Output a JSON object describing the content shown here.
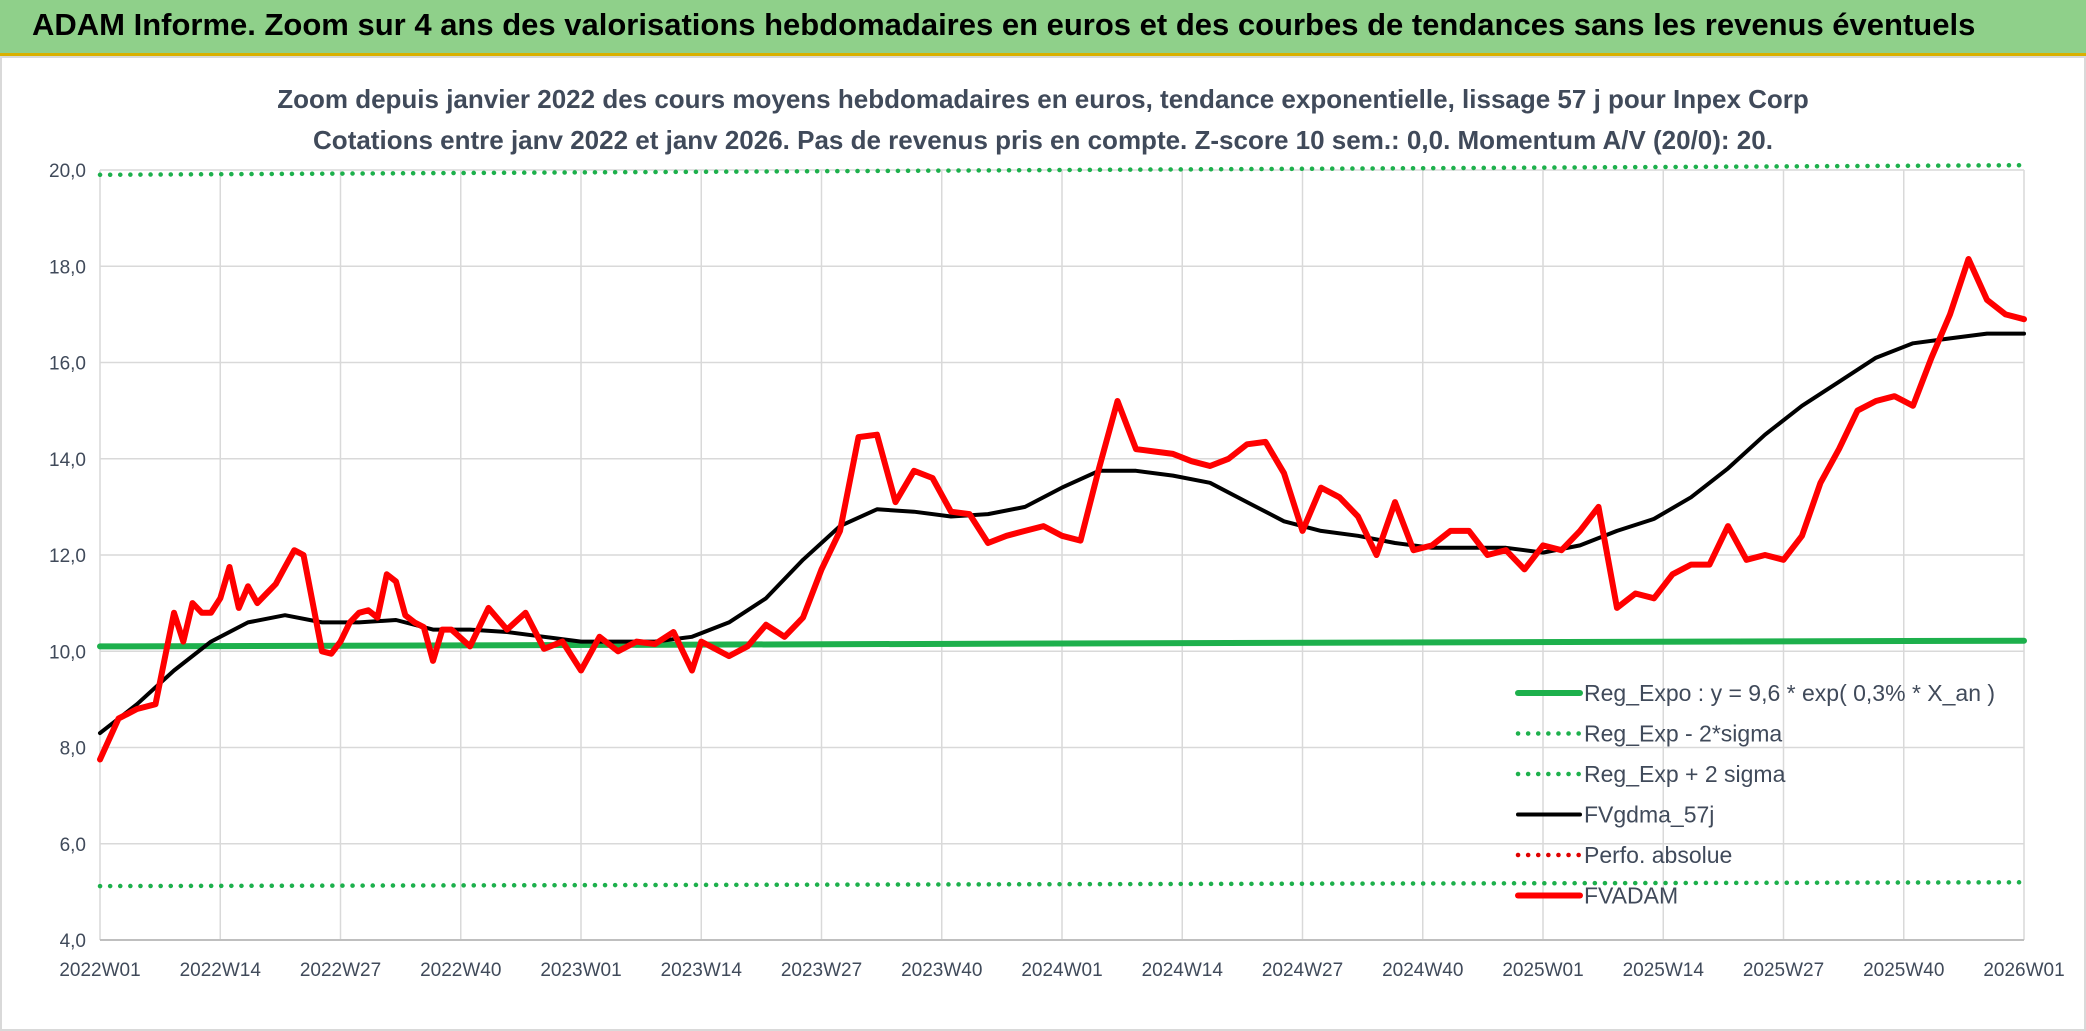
{
  "banner": {
    "title": "ADAM Informe. Zoom sur 4 ans des valorisations hebdomadaires en euros et des courbes de tendances sans les revenus éventuels"
  },
  "chart_data": {
    "type": "line",
    "title": "Zoom depuis janvier 2022 des cours moyens hebdomadaires en euros, tendance exponentielle, lissage 57 j pour Inpex Corp",
    "subtitle": "Cotations entre janv 2022 et janv 2026. Pas de revenus pris en compte. Z-score 10 sem.: 0,0. Momentum A/V (20/0): 20.",
    "xlabel": "",
    "ylabel": "",
    "ylim": [
      4,
      20
    ],
    "yticks": [
      "4,0",
      "6,0",
      "8,0",
      "10,0",
      "12,0",
      "14,0",
      "16,0",
      "18,0",
      "20,0"
    ],
    "x_tick_labels": [
      "2022W01",
      "2022W14",
      "2022W27",
      "2022W40",
      "2023W01",
      "2023W14",
      "2023W27",
      "2023W40",
      "2024W01",
      "2024W14",
      "2024W27",
      "2024W40",
      "2025W01",
      "2025W14",
      "2025W27",
      "2025W40",
      "2026W01"
    ],
    "x_week_start": 0,
    "x_week_end": 208,
    "grid": true,
    "legend_position": "bottom-right",
    "series": [
      {
        "name": "Reg_Expo : y = 9,6 * exp( 0,3% *  X_an )",
        "color": "#1db04c",
        "style": "solid-thick",
        "x": [
          0,
          208
        ],
        "values": [
          10.1,
          10.22
        ]
      },
      {
        "name": "Reg_Exp - 2*sigma",
        "color": "#1db04c",
        "style": "dotted",
        "x": [
          0,
          208
        ],
        "values": [
          5.12,
          5.2
        ]
      },
      {
        "name": "Reg_Exp + 2 sigma",
        "color": "#1db04c",
        "style": "dotted",
        "x": [
          0,
          208
        ],
        "values": [
          19.9,
          20.1
        ]
      },
      {
        "name": "FVgdma_57j",
        "color": "#000000",
        "style": "solid",
        "x": [
          0,
          4,
          8,
          12,
          16,
          20,
          24,
          28,
          32,
          36,
          40,
          44,
          48,
          52,
          56,
          60,
          64,
          68,
          72,
          76,
          80,
          84,
          88,
          92,
          96,
          100,
          104,
          108,
          112,
          116,
          120,
          124,
          128,
          132,
          136,
          140,
          144,
          148,
          152,
          156,
          160,
          164,
          168,
          172,
          176,
          180,
          184,
          188,
          192,
          196,
          200,
          204,
          208
        ],
        "values": [
          8.3,
          8.9,
          9.6,
          10.2,
          10.6,
          10.75,
          10.6,
          10.6,
          10.65,
          10.45,
          10.45,
          10.4,
          10.3,
          10.2,
          10.2,
          10.2,
          10.3,
          10.6,
          11.1,
          11.9,
          12.6,
          12.95,
          12.9,
          12.8,
          12.85,
          13.0,
          13.4,
          13.75,
          13.75,
          13.65,
          13.5,
          13.1,
          12.7,
          12.5,
          12.4,
          12.25,
          12.15,
          12.15,
          12.15,
          12.05,
          12.2,
          12.5,
          12.75,
          13.2,
          13.8,
          14.5,
          15.1,
          15.6,
          16.1,
          16.4,
          16.5,
          16.6,
          16.6
        ]
      },
      {
        "name": "Perfo. absolue",
        "color": "#e00000",
        "style": "dotted",
        "x": [],
        "values": []
      },
      {
        "name": "FVADAM",
        "color": "#ff0000",
        "style": "solid-thick",
        "x": [
          0,
          2,
          4,
          6,
          8,
          9,
          10,
          11,
          12,
          13,
          14,
          15,
          16,
          17,
          18,
          19,
          20,
          21,
          22,
          24,
          25,
          26,
          27,
          28,
          29,
          30,
          31,
          32,
          33,
          34,
          35,
          36,
          37,
          38,
          40,
          42,
          44,
          46,
          48,
          50,
          52,
          54,
          56,
          58,
          60,
          62,
          64,
          65,
          66,
          68,
          70,
          72,
          74,
          76,
          78,
          80,
          82,
          84,
          86,
          88,
          90,
          92,
          94,
          96,
          98,
          100,
          102,
          104,
          106,
          108,
          110,
          112,
          114,
          116,
          118,
          120,
          122,
          124,
          126,
          128,
          130,
          132,
          134,
          136,
          138,
          140,
          142,
          144,
          146,
          148,
          150,
          152,
          154,
          156,
          158,
          160,
          162,
          164,
          166,
          168,
          170,
          172,
          174,
          176,
          178,
          180,
          182,
          184,
          186,
          188,
          190,
          192,
          194,
          196,
          198,
          200,
          202,
          204,
          206,
          208
        ],
        "values": [
          7.75,
          8.6,
          8.8,
          8.9,
          10.8,
          10.2,
          11.0,
          10.8,
          10.8,
          11.1,
          11.75,
          10.9,
          11.35,
          11.0,
          11.2,
          11.4,
          11.75,
          12.1,
          12.0,
          10.0,
          9.95,
          10.2,
          10.6,
          10.8,
          10.85,
          10.7,
          11.6,
          11.45,
          10.75,
          10.6,
          10.5,
          9.8,
          10.45,
          10.45,
          10.1,
          10.9,
          10.45,
          10.8,
          10.05,
          10.2,
          9.6,
          10.3,
          10.0,
          10.2,
          10.15,
          10.4,
          9.6,
          10.2,
          10.1,
          9.9,
          10.1,
          10.55,
          10.3,
          10.7,
          11.7,
          12.5,
          14.45,
          14.5,
          13.1,
          13.75,
          13.6,
          12.9,
          12.85,
          12.25,
          12.4,
          12.5,
          12.6,
          12.4,
          12.3,
          13.8,
          15.2,
          14.2,
          14.15,
          14.1,
          13.95,
          13.85,
          14.0,
          14.3,
          14.35,
          13.7,
          12.5,
          13.4,
          13.2,
          12.8,
          12.0,
          13.1,
          12.1,
          12.2,
          12.5,
          12.5,
          12.0,
          12.1,
          11.7,
          12.2,
          12.1,
          12.5,
          13.0,
          10.9,
          11.2,
          11.1,
          11.6,
          11.8,
          11.8,
          12.6,
          11.9,
          12.0,
          11.9,
          12.4,
          13.5,
          14.2,
          15.0,
          15.2,
          15.3,
          15.1,
          16.1,
          17.0,
          18.15,
          17.3,
          17.0,
          16.9
        ]
      }
    ]
  }
}
